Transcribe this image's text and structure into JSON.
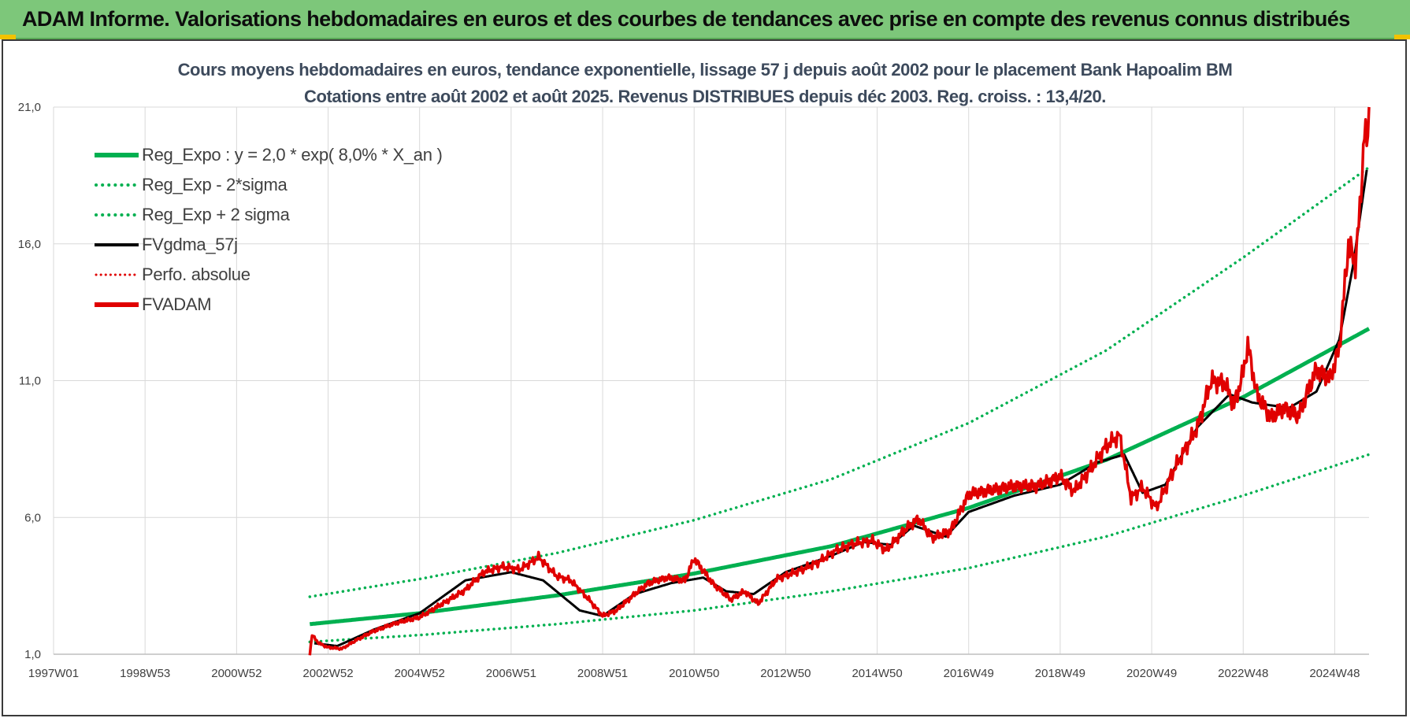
{
  "banner": {
    "title": "ADAM Informe. Valorisations hebdomadaires en euros et des courbes de tendances avec prise en compte des revenus connus distribués"
  },
  "colors": {
    "banner_bg": "#7dc77a",
    "regression": "#00b050",
    "smoothed": "#000000",
    "fvadam": "#e00000",
    "perfo": "#e00000"
  },
  "chart_data": {
    "type": "line",
    "title_line1": "Cours moyens hebdomadaires en euros, tendance exponentielle, lissage 57 j depuis août 2002 pour le placement Bank Hapoalim BM",
    "title_line2": "Cotations entre août 2002 et août 2025. Revenus DISTRIBUES depuis déc 2003. Reg. croiss. : 13,4/20.",
    "x_axis": {
      "range": [
        1997.0,
        2025.75
      ],
      "ticks": [
        {
          "label": "1997W01",
          "x": 1997.0
        },
        {
          "label": "1998W53",
          "x": 1999.0
        },
        {
          "label": "2000W52",
          "x": 2001.0
        },
        {
          "label": "2002W52",
          "x": 2003.0
        },
        {
          "label": "2004W52",
          "x": 2005.0
        },
        {
          "label": "2006W51",
          "x": 2007.0
        },
        {
          "label": "2008W51",
          "x": 2009.0
        },
        {
          "label": "2010W50",
          "x": 2011.0
        },
        {
          "label": "2012W50",
          "x": 2013.0
        },
        {
          "label": "2014W50",
          "x": 2015.0
        },
        {
          "label": "2016W49",
          "x": 2017.0
        },
        {
          "label": "2018W49",
          "x": 2019.0
        },
        {
          "label": "2020W49",
          "x": 2021.0
        },
        {
          "label": "2022W48",
          "x": 2023.0
        },
        {
          "label": "2024W48",
          "x": 2025.0
        }
      ]
    },
    "y_axis": {
      "range": [
        1.0,
        21.0
      ],
      "ticks": [
        "1,0",
        "6,0",
        "11,0",
        "16,0",
        "21,0"
      ],
      "tick_values": [
        1,
        6,
        11,
        16,
        21
      ],
      "grid": true
    },
    "legend_position": "top-left",
    "series": [
      {
        "name": "Reg_Expo : y = 2,0 * exp( 8,0% *  X_an )",
        "style": "solid-thick",
        "color": "#00b050",
        "points": [
          [
            2002.6,
            2.1
          ],
          [
            2005,
            2.5
          ],
          [
            2008,
            3.15
          ],
          [
            2011,
            3.95
          ],
          [
            2014,
            4.95
          ],
          [
            2017,
            6.35
          ],
          [
            2020,
            8.1
          ],
          [
            2023,
            10.4
          ],
          [
            2025.75,
            12.9
          ]
        ]
      },
      {
        "name": "Reg_Exp - 2*sigma",
        "style": "dotted",
        "color": "#00b050",
        "points": [
          [
            2002.6,
            1.45
          ],
          [
            2005,
            1.7
          ],
          [
            2008,
            2.1
          ],
          [
            2011,
            2.6
          ],
          [
            2014,
            3.3
          ],
          [
            2017,
            4.15
          ],
          [
            2020,
            5.3
          ],
          [
            2023,
            6.8
          ],
          [
            2025.75,
            8.3
          ]
        ]
      },
      {
        "name": "Reg_Exp + 2 sigma",
        "style": "dotted",
        "color": "#00b050",
        "points": [
          [
            2002.6,
            3.1
          ],
          [
            2005,
            3.75
          ],
          [
            2008,
            4.7
          ],
          [
            2011,
            5.9
          ],
          [
            2014,
            7.4
          ],
          [
            2017,
            9.45
          ],
          [
            2020,
            12.1
          ],
          [
            2023,
            15.5
          ],
          [
            2025.75,
            18.8
          ]
        ]
      },
      {
        "name": "FVgdma_57j",
        "style": "solid",
        "color": "#000000",
        "points": [
          [
            2002.7,
            1.4
          ],
          [
            2003.2,
            1.3
          ],
          [
            2004,
            1.9
          ],
          [
            2005,
            2.5
          ],
          [
            2006,
            3.7
          ],
          [
            2007,
            4.0
          ],
          [
            2007.7,
            3.7
          ],
          [
            2008.5,
            2.6
          ],
          [
            2009.0,
            2.4
          ],
          [
            2009.7,
            3.2
          ],
          [
            2010.5,
            3.6
          ],
          [
            2011.2,
            3.8
          ],
          [
            2011.7,
            3.3
          ],
          [
            2012.3,
            3.2
          ],
          [
            2013.0,
            4.0
          ],
          [
            2014.0,
            4.6
          ],
          [
            2014.7,
            5.1
          ],
          [
            2015.3,
            5.0
          ],
          [
            2015.8,
            5.7
          ],
          [
            2016.5,
            5.3
          ],
          [
            2017.0,
            6.2
          ],
          [
            2018.0,
            6.8
          ],
          [
            2019.0,
            7.2
          ],
          [
            2019.8,
            8.0
          ],
          [
            2020.4,
            8.3
          ],
          [
            2020.8,
            6.9
          ],
          [
            2021.3,
            7.2
          ],
          [
            2022.0,
            9.3
          ],
          [
            2022.7,
            10.5
          ],
          [
            2023.2,
            10.2
          ],
          [
            2024.0,
            10.0
          ],
          [
            2024.6,
            10.6
          ],
          [
            2025.1,
            12.5
          ],
          [
            2025.4,
            15.2
          ],
          [
            2025.7,
            18.7
          ]
        ]
      },
      {
        "name": "Perfo. absolue",
        "style": "dotted",
        "color": "#e00000",
        "points": []
      },
      {
        "name": "FVADAM",
        "style": "solid-thick",
        "color": "#e00000",
        "points": [
          [
            2002.6,
            1.0
          ],
          [
            2002.65,
            1.7
          ],
          [
            2002.8,
            1.4
          ],
          [
            2003.0,
            1.25
          ],
          [
            2003.3,
            1.2
          ],
          [
            2003.6,
            1.5
          ],
          [
            2004.0,
            1.85
          ],
          [
            2004.5,
            2.15
          ],
          [
            2005.0,
            2.35
          ],
          [
            2005.5,
            2.85
          ],
          [
            2006.0,
            3.35
          ],
          [
            2006.4,
            4.0
          ],
          [
            2006.8,
            4.2
          ],
          [
            2007.2,
            4.1
          ],
          [
            2007.6,
            4.55
          ],
          [
            2008.0,
            3.85
          ],
          [
            2008.3,
            3.7
          ],
          [
            2008.7,
            3.0
          ],
          [
            2009.0,
            2.4
          ],
          [
            2009.3,
            2.6
          ],
          [
            2009.7,
            3.2
          ],
          [
            2010.0,
            3.6
          ],
          [
            2010.4,
            3.8
          ],
          [
            2010.8,
            3.7
          ],
          [
            2011.0,
            4.5
          ],
          [
            2011.4,
            3.6
          ],
          [
            2011.8,
            3.0
          ],
          [
            2012.1,
            3.3
          ],
          [
            2012.4,
            2.85
          ],
          [
            2012.8,
            3.75
          ],
          [
            2013.3,
            4.05
          ],
          [
            2013.7,
            4.35
          ],
          [
            2014.1,
            4.8
          ],
          [
            2014.5,
            5.05
          ],
          [
            2014.9,
            5.15
          ],
          [
            2015.2,
            4.8
          ],
          [
            2015.6,
            5.55
          ],
          [
            2015.9,
            5.95
          ],
          [
            2016.2,
            5.25
          ],
          [
            2016.6,
            5.5
          ],
          [
            2017.0,
            6.85
          ],
          [
            2017.5,
            7.0
          ],
          [
            2018.0,
            7.15
          ],
          [
            2018.5,
            7.15
          ],
          [
            2019.0,
            7.5
          ],
          [
            2019.3,
            6.95
          ],
          [
            2019.7,
            7.85
          ],
          [
            2020.0,
            8.6
          ],
          [
            2020.3,
            9.0
          ],
          [
            2020.55,
            6.7
          ],
          [
            2020.8,
            7.1
          ],
          [
            2021.1,
            6.35
          ],
          [
            2021.5,
            7.8
          ],
          [
            2022.0,
            9.3
          ],
          [
            2022.3,
            11.0
          ],
          [
            2022.6,
            10.9
          ],
          [
            2022.8,
            10.1
          ],
          [
            2023.0,
            11.3
          ],
          [
            2023.1,
            12.3
          ],
          [
            2023.3,
            10.5
          ],
          [
            2023.6,
            9.65
          ],
          [
            2023.9,
            10.0
          ],
          [
            2024.2,
            9.7
          ],
          [
            2024.6,
            11.4
          ],
          [
            2024.9,
            11.05
          ],
          [
            2025.1,
            12.2
          ],
          [
            2025.3,
            16.0
          ],
          [
            2025.45,
            15.3
          ],
          [
            2025.55,
            17.2
          ],
          [
            2025.65,
            20.2
          ],
          [
            2025.7,
            19.5
          ],
          [
            2025.75,
            21.0
          ]
        ]
      }
    ]
  }
}
